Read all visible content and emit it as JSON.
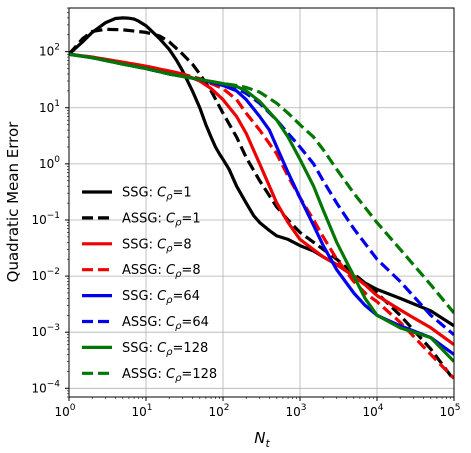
{
  "chart_data": {
    "type": "line",
    "title": "",
    "xlabel": "N_t",
    "ylabel": "Quadratic Mean Error",
    "xscale": "log",
    "yscale": "log",
    "xlim": [
      1,
      100000
    ],
    "ylim": [
      7e-05,
      600
    ],
    "grid": true,
    "legend_position": "lower-left",
    "x_ticks": [
      {
        "value": 1,
        "base": "10",
        "exp": "0"
      },
      {
        "value": 10,
        "base": "10",
        "exp": "1"
      },
      {
        "value": 100,
        "base": "10",
        "exp": "2"
      },
      {
        "value": 1000,
        "base": "10",
        "exp": "3"
      },
      {
        "value": 10000,
        "base": "10",
        "exp": "4"
      },
      {
        "value": 100000,
        "base": "10",
        "exp": "5"
      }
    ],
    "y_ticks": [
      {
        "value": 0.0001,
        "base": "10",
        "exp": "−4"
      },
      {
        "value": 0.001,
        "base": "10",
        "exp": "−3"
      },
      {
        "value": 0.01,
        "base": "10",
        "exp": "−2"
      },
      {
        "value": 0.1,
        "base": "10",
        "exp": "−1"
      },
      {
        "value": 1,
        "base": "10",
        "exp": "0"
      },
      {
        "value": 10,
        "base": "10",
        "exp": "1"
      },
      {
        "value": 100,
        "base": "10",
        "exp": "2"
      }
    ],
    "series": [
      {
        "name": "SSG: C_ρ=1",
        "label_main": "SSG: ",
        "label_c": "C",
        "label_sub": "ρ",
        "label_val": "=1",
        "color": "#000000",
        "dash": false,
        "x": [
          1,
          1.5,
          2,
          3,
          4,
          5,
          6,
          7,
          8,
          10,
          12,
          15,
          20,
          25,
          30,
          40,
          50,
          60,
          70,
          80,
          90,
          100,
          120,
          150,
          200,
          250,
          300,
          400,
          500,
          700,
          1000,
          1500,
          2000,
          3000,
          5000,
          7000,
          10000,
          20000,
          50000,
          100000
        ],
        "y": [
          90,
          150,
          220,
          330,
          390,
          400,
          395,
          380,
          350,
          290,
          230,
          170,
          110,
          70,
          45,
          20,
          10,
          5,
          3,
          2,
          1.5,
          1.2,
          0.8,
          0.4,
          0.2,
          0.12,
          0.09,
          0.065,
          0.052,
          0.045,
          0.035,
          0.028,
          0.022,
          0.016,
          0.01,
          0.0075,
          0.0058,
          0.004,
          0.0024,
          0.0013
        ]
      },
      {
        "name": "ASSG: C_ρ=1",
        "label_main": "ASSG: ",
        "label_c": "C",
        "label_sub": "ρ",
        "label_val": "=1",
        "color": "#000000",
        "dash": true,
        "x": [
          1,
          1.5,
          2,
          3,
          5,
          10,
          15,
          20,
          30,
          40,
          50,
          70,
          100,
          150,
          200,
          300,
          500,
          700,
          1000,
          2000,
          3000,
          5000,
          7000,
          10000,
          20000,
          50000,
          100000
        ],
        "y": [
          90,
          170,
          230,
          250,
          245,
          220,
          190,
          150,
          90,
          60,
          40,
          20,
          8,
          3,
          1.3,
          0.5,
          0.17,
          0.1,
          0.06,
          0.03,
          0.02,
          0.011,
          0.0075,
          0.005,
          0.002,
          0.0005,
          0.00014
        ]
      },
      {
        "name": "SSG: C_ρ=8",
        "label_main": "SSG: ",
        "label_c": "C",
        "label_sub": "ρ",
        "label_val": "=8",
        "color": "#ee0000",
        "dash": false,
        "x": [
          1,
          2,
          5,
          10,
          20,
          30,
          50,
          70,
          100,
          150,
          200,
          300,
          400,
          500,
          700,
          1000,
          2000,
          3000,
          5000,
          7000,
          10000,
          20000,
          30000,
          50000,
          100000
        ],
        "y": [
          90,
          80,
          65,
          55,
          45,
          40,
          30,
          22,
          14,
          7,
          3.5,
          1.0,
          0.4,
          0.2,
          0.09,
          0.045,
          0.022,
          0.016,
          0.01,
          0.007,
          0.0045,
          0.0025,
          0.0018,
          0.0012,
          0.0006
        ]
      },
      {
        "name": "ASSG: C_ρ=8",
        "label_main": "ASSG: ",
        "label_c": "C",
        "label_sub": "ρ",
        "label_val": "=8",
        "color": "#ee0000",
        "dash": true,
        "x": [
          1,
          2,
          5,
          10,
          20,
          30,
          50,
          100,
          150,
          200,
          300,
          500,
          700,
          1000,
          1500,
          2000,
          3000,
          5000,
          7000,
          10000,
          20000,
          50000,
          100000
        ],
        "y": [
          90,
          80,
          65,
          55,
          45,
          40,
          33,
          22,
          14,
          8,
          4,
          1.5,
          0.6,
          0.25,
          0.1,
          0.05,
          0.02,
          0.008,
          0.005,
          0.0035,
          0.0015,
          0.0004,
          0.00015
        ]
      },
      {
        "name": "SSG: C_ρ=64",
        "label_main": "SSG: ",
        "label_c": "C",
        "label_sub": "ρ",
        "label_val": "=64",
        "color": "#0000ee",
        "dash": false,
        "x": [
          1,
          2,
          5,
          10,
          20,
          50,
          100,
          150,
          200,
          300,
          400,
          500,
          700,
          1000,
          1500,
          2000,
          3000,
          5000,
          7000,
          10000,
          20000,
          50000,
          100000
        ],
        "y": [
          90,
          78,
          60,
          50,
          40,
          32,
          25,
          20,
          14,
          7,
          4,
          2,
          0.7,
          0.25,
          0.08,
          0.035,
          0.013,
          0.005,
          0.003,
          0.002,
          0.0013,
          0.0008,
          0.0004
        ]
      },
      {
        "name": "ASSG: C_ρ=64",
        "label_main": "ASSG: ",
        "label_c": "C",
        "label_sub": "ρ",
        "label_val": "=64",
        "color": "#0000ee",
        "dash": true,
        "x": [
          1,
          2,
          5,
          10,
          20,
          50,
          100,
          150,
          200,
          300,
          500,
          700,
          1000,
          1500,
          2000,
          3000,
          5000,
          10000,
          20000,
          50000,
          100000
        ],
        "y": [
          90,
          78,
          60,
          50,
          40,
          32,
          26,
          22,
          18,
          12,
          6,
          3.5,
          2,
          1.0,
          0.5,
          0.2,
          0.07,
          0.02,
          0.008,
          0.002,
          0.0009
        ]
      },
      {
        "name": "SSG: C_ρ=128",
        "label_main": "SSG: ",
        "label_c": "C",
        "label_sub": "ρ",
        "label_val": "=128",
        "color": "#007700",
        "dash": false,
        "x": [
          1,
          2,
          5,
          10,
          20,
          50,
          100,
          150,
          200,
          300,
          500,
          700,
          1000,
          1500,
          2000,
          3000,
          5000,
          7000,
          10000,
          20000,
          50000,
          100000
        ],
        "y": [
          90,
          78,
          60,
          50,
          40,
          32,
          27,
          24,
          20,
          13,
          6,
          3,
          1.2,
          0.4,
          0.15,
          0.04,
          0.01,
          0.004,
          0.002,
          0.0012,
          0.0008,
          0.0003
        ]
      },
      {
        "name": "ASSG: C_ρ=128",
        "label_main": "ASSG: ",
        "label_c": "C",
        "label_sub": "ρ",
        "label_val": "=128",
        "color": "#007700",
        "dash": true,
        "x": [
          1,
          2,
          5,
          10,
          20,
          50,
          100,
          150,
          200,
          300,
          500,
          700,
          1000,
          1500,
          2000,
          3000,
          5000,
          10000,
          20000,
          50000,
          100000
        ],
        "y": [
          90,
          78,
          60,
          50,
          40,
          32,
          27,
          25,
          23,
          19,
          12,
          8,
          5,
          3,
          1.8,
          0.8,
          0.3,
          0.09,
          0.03,
          0.007,
          0.0022
        ]
      }
    ]
  }
}
